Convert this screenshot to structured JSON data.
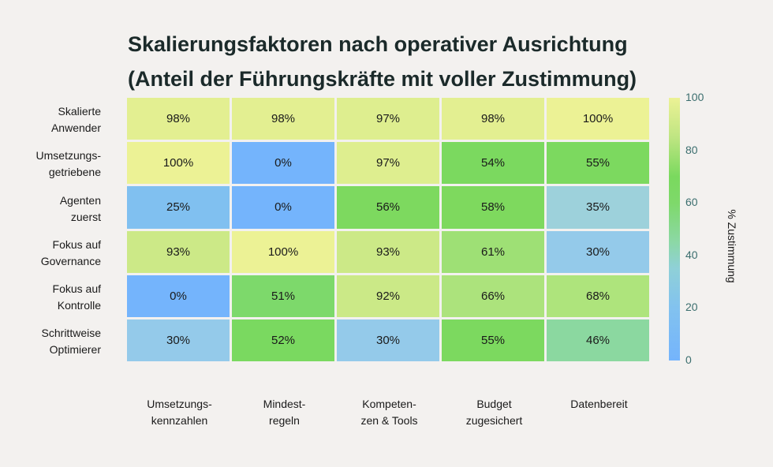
{
  "chart_data": {
    "type": "heatmap",
    "title": "Skalierungsfaktoren nach operativer Ausrichtung\n(Anteil der Führungskräfte mit voller Zustimmung)",
    "title_lines": [
      "Skalierungsfaktoren nach operativer Ausrichtung",
      "(Anteil der Führungskräfte mit voller Zustimmung)"
    ],
    "rows": [
      "Skalierte\nAnwender",
      "Umsetzungs-\ngetriebene",
      "Agenten\nzuerst",
      "Fokus auf\nGovernance",
      "Fokus auf\nKontrolle",
      "Schrittweise\nOptimierer"
    ],
    "columns": [
      "Umsetzungs-\nkennzahlen",
      "Mindest-\nregeln",
      "Kompeten-\nzen & Tools",
      "Budget\nzugesichert",
      "Datenbereit"
    ],
    "values": [
      [
        98,
        98,
        97,
        98,
        100
      ],
      [
        100,
        0,
        97,
        54,
        55
      ],
      [
        25,
        0,
        56,
        58,
        35
      ],
      [
        93,
        100,
        93,
        61,
        30
      ],
      [
        0,
        51,
        92,
        66,
        68
      ],
      [
        30,
        52,
        30,
        55,
        46
      ]
    ],
    "value_suffix": "%",
    "colorbar": {
      "label": "% Zustimmung",
      "range": [
        0,
        100
      ],
      "ticks": [
        0,
        20,
        40,
        60,
        80,
        100
      ],
      "colors": {
        "low": "#74b4fc",
        "mid": "#7ad95e",
        "high": "#ecf295"
      }
    }
  }
}
